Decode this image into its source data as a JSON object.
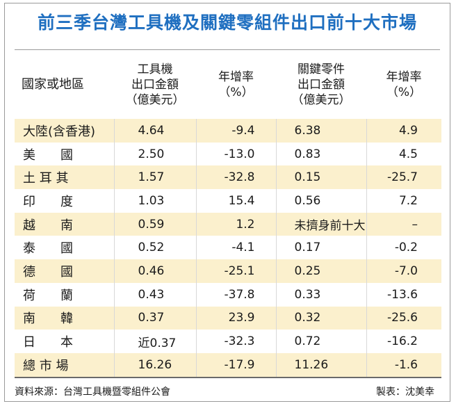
{
  "title": "前三季台灣工具機及關鍵零組件出口前十大市場",
  "header": {
    "col0": "國家或地區",
    "col1": [
      "工具機",
      "出口金額",
      "（億美元）"
    ],
    "col2": [
      "年增率",
      "（%）"
    ],
    "col3": [
      "關鍵零件",
      "出口金額",
      "（億美元）"
    ],
    "col4": [
      "年增率",
      "（%）"
    ]
  },
  "rows": [
    {
      "country": "大陸(含香港)",
      "tool": "4.64",
      "tool_yoy": "-9.4",
      "parts": "6.38",
      "parts_yoy": "4.9"
    },
    {
      "country": "美　　國",
      "tool": "2.50",
      "tool_yoy": "-13.0",
      "parts": "0.83",
      "parts_yoy": "4.5"
    },
    {
      "country": "土 耳 其",
      "tool": "1.57",
      "tool_yoy": "-32.8",
      "parts": "0.15",
      "parts_yoy": "-25.7"
    },
    {
      "country": "印　　度",
      "tool": "1.03",
      "tool_yoy": "15.4",
      "parts": "0.56",
      "parts_yoy": "7.2"
    },
    {
      "country": "越　　南",
      "tool": "0.59",
      "tool_yoy": "1.2",
      "parts": "未擠身前十大",
      "parts_yoy": "–"
    },
    {
      "country": "泰　　國",
      "tool": "0.52",
      "tool_yoy": "-4.1",
      "parts": "0.17",
      "parts_yoy": "-0.2"
    },
    {
      "country": "德　　國",
      "tool": "0.46",
      "tool_yoy": "-25.1",
      "parts": "0.25",
      "parts_yoy": "-7.0"
    },
    {
      "country": "荷　　蘭",
      "tool": "0.43",
      "tool_yoy": "-37.8",
      "parts": "0.33",
      "parts_yoy": "-13.6"
    },
    {
      "country": "南　　韓",
      "tool": "0.37",
      "tool_yoy": "23.9",
      "parts": "0.32",
      "parts_yoy": "-25.6"
    },
    {
      "country": "日　　本",
      "tool": "近0.37",
      "tool_yoy": "-32.3",
      "parts": "0.72",
      "parts_yoy": "-16.2"
    },
    {
      "country": "總 市 場",
      "tool": "16.26",
      "tool_yoy": "-17.9",
      "parts": "11.26",
      "parts_yoy": "-1.6"
    }
  ],
  "footer": {
    "source": "資料來源：台灣工具機暨零組件公會",
    "maker": "製表：沈美幸"
  },
  "colors": {
    "title": "#1f6fc0",
    "row_highlight": "#fbf0cd",
    "border": "#9a9a9a"
  }
}
